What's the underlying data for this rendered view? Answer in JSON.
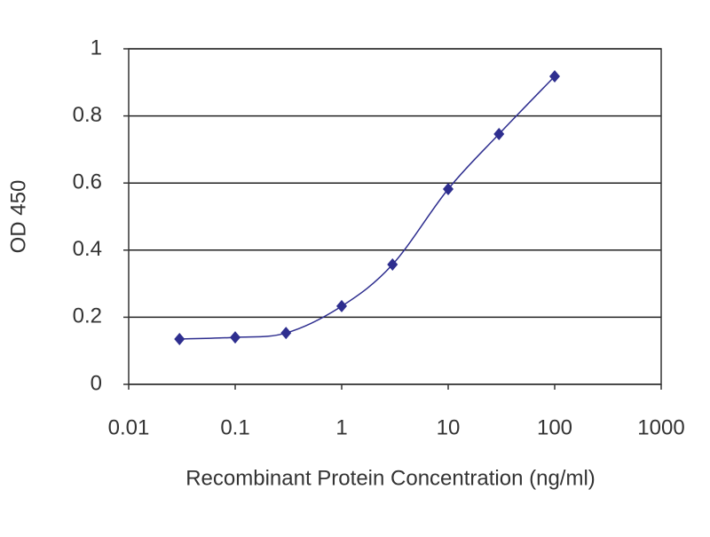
{
  "chart_data": {
    "type": "line",
    "x_label": "Recombinant Protein Concentration (ng/ml)",
    "y_label": "OD 450",
    "x": [
      0.03,
      0.1,
      0.3,
      1,
      3,
      10,
      30,
      100
    ],
    "series": [
      {
        "name": "OD 450",
        "color": "#2e2e8f",
        "values": [
          0.135,
          0.14,
          0.153,
          0.233,
          0.357,
          0.582,
          0.746,
          0.918
        ]
      }
    ],
    "xscale": "log",
    "xlim": [
      0.01,
      1000
    ],
    "xticks": [
      0.01,
      0.1,
      1,
      10,
      100,
      1000
    ],
    "ylim": [
      0,
      1
    ],
    "yticks": [
      0,
      0.2,
      0.4,
      0.6,
      0.8,
      1
    ],
    "grid": true
  }
}
